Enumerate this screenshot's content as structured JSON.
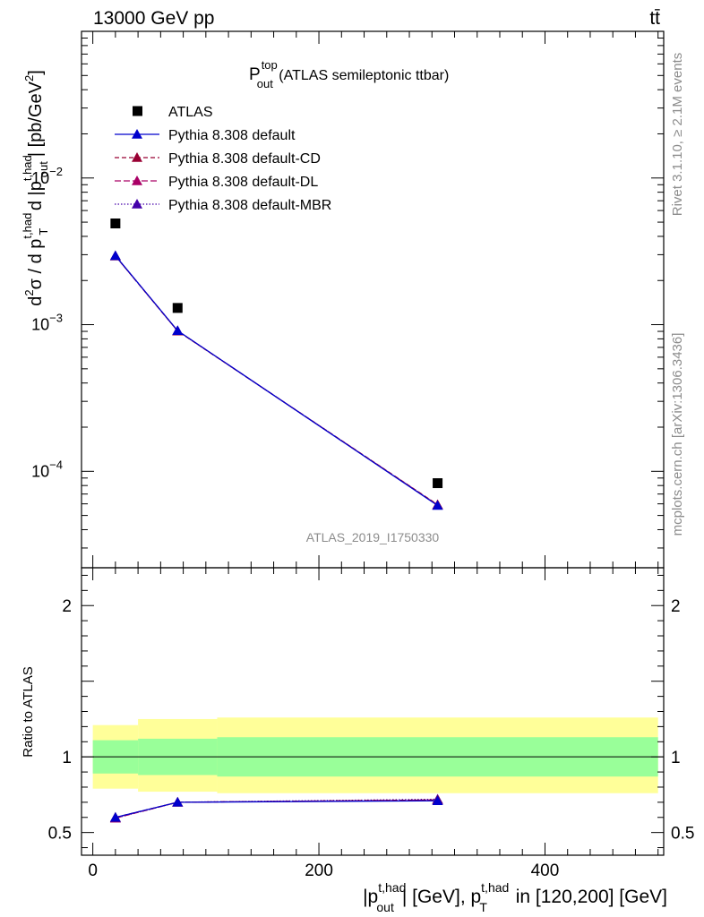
{
  "header": {
    "left": "13000 GeV pp",
    "right": "tt̄"
  },
  "side_labels": {
    "rivet": "Rivet 3.1.10, ≥ 2.1M events",
    "mcplots": "mcplots.cern.ch [arXiv:1306.3436]"
  },
  "analysis_id": "ATLAS_2019_I1750330",
  "colors": {
    "data": "#000000",
    "default": "#0000cc",
    "cd": "#990033",
    "dl": "#aa0066",
    "mbr": "#4400aa",
    "band_inner": "#99ff99",
    "band_outer": "#ffff99"
  },
  "chart_data": [
    {
      "type": "scatter",
      "panel": "main",
      "title": {
        "main": "P",
        "sup": "top",
        "sub": "out",
        "rest": " (ATLAS semileptonic ttbar)"
      },
      "ylabel": "d²σ / d p_T^{t,had} d |p_out^{t,had}| [pb/GeV²]",
      "yscale": "log",
      "ylim": [
        2.2e-05,
        0.1
      ],
      "xlim": [
        -10,
        505
      ],
      "ytick_labels": [
        {
          "value": 0.01,
          "base": "10",
          "exp": "−2"
        },
        {
          "value": 0.001,
          "base": "10",
          "exp": "−3"
        },
        {
          "value": 0.0001,
          "base": "10",
          "exp": "−4"
        }
      ],
      "legend": {
        "placement": "top-left",
        "entries": [
          "ATLAS",
          "Pythia 8.308 default",
          "Pythia 8.308 default-CD",
          "Pythia 8.308 default-DL",
          "Pythia 8.308 default-MBR"
        ]
      },
      "series": [
        {
          "name": "ATLAS",
          "x": [
            20,
            75,
            305
          ],
          "y": [
            0.0049,
            0.0013,
            8.3e-05
          ]
        },
        {
          "name": "Pythia 8.308 default",
          "x": [
            20,
            75,
            305
          ],
          "y": [
            0.00295,
            0.00091,
            5.85e-05
          ]
        },
        {
          "name": "Pythia 8.308 default-CD",
          "x": [
            20,
            75,
            305
          ],
          "y": [
            0.00294,
            0.000905,
            5.92e-05
          ]
        },
        {
          "name": "Pythia 8.308 default-DL",
          "x": [
            20,
            75,
            305
          ],
          "y": [
            0.00294,
            0.000907,
            5.9e-05
          ]
        },
        {
          "name": "Pythia 8.308 default-MBR",
          "x": [
            20,
            75,
            305
          ],
          "y": [
            0.00295,
            0.000908,
            5.88e-05
          ]
        }
      ]
    },
    {
      "type": "line",
      "panel": "ratio",
      "ylabel": "Ratio to ATLAS",
      "xlabel": "|p_out^{t,had}| [GeV], p_T^{t,had} in [120,200] [GeV]",
      "ylim": [
        0.35,
        2.25
      ],
      "xlim": [
        -10,
        505
      ],
      "x_tick_labels": [
        "0",
        "200",
        "400"
      ],
      "y_tick_labels": [
        "0.5",
        "1",
        "2"
      ],
      "bands": {
        "edges": [
          0,
          40,
          110,
          500
        ],
        "inner": [
          [
            0.89,
            1.11
          ],
          [
            0.88,
            1.12
          ],
          [
            0.87,
            1.13
          ]
        ],
        "outer": [
          [
            0.79,
            1.21
          ],
          [
            0.77,
            1.25
          ],
          [
            0.76,
            1.26
          ]
        ]
      },
      "series": [
        {
          "name": "Pythia 8.308 default",
          "x": [
            20,
            75,
            305
          ],
          "y": [
            0.6,
            0.7,
            0.71
          ]
        },
        {
          "name": "Pythia 8.308 default-CD",
          "x": [
            20,
            75,
            305
          ],
          "y": [
            0.6,
            0.7,
            0.715
          ]
        },
        {
          "name": "Pythia 8.308 default-DL",
          "x": [
            20,
            75,
            305
          ],
          "y": [
            0.595,
            0.7,
            0.715
          ]
        },
        {
          "name": "Pythia 8.308 default-MBR",
          "x": [
            20,
            75,
            305
          ],
          "y": [
            0.595,
            0.7,
            0.72
          ]
        }
      ]
    }
  ]
}
